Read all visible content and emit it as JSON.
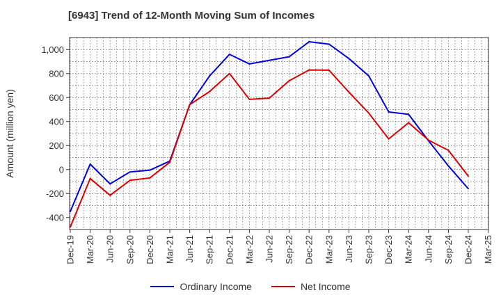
{
  "chart_data": {
    "type": "line",
    "title": "[6943]  Trend of 12-Month Moving Sum of Incomes",
    "xlabel": "",
    "ylabel": "Amount (million yen)",
    "ylim": [
      -500,
      1100
    ],
    "yticks": [
      -400,
      -200,
      0,
      200,
      400,
      600,
      800,
      1000
    ],
    "ytick_labels": [
      "-400",
      "-200",
      "0",
      "200",
      "400",
      "600",
      "800",
      "1,000"
    ],
    "grid": true,
    "legend_position": "bottom-center",
    "categories": [
      "Dec-19",
      "Mar-20",
      "Jun-20",
      "Sep-20",
      "Dec-20",
      "Mar-21",
      "Jun-21",
      "Sep-21",
      "Dec-21",
      "Mar-22",
      "Jun-22",
      "Sep-22",
      "Dec-22",
      "Mar-23",
      "Jun-23",
      "Sep-23",
      "Dec-23",
      "Mar-24",
      "Jun-24",
      "Sep-24",
      "Dec-24",
      "Mar-25"
    ],
    "series": [
      {
        "name": "Ordinary Income",
        "color": "#0000dd",
        "values": [
          -350,
          45,
          -120,
          -20,
          -5,
          70,
          540,
          780,
          960,
          880,
          910,
          940,
          1065,
          1045,
          925,
          780,
          480,
          460,
          240,
          30,
          -160,
          null
        ]
      },
      {
        "name": "Net Income",
        "color": "#dd0000",
        "values": [
          -480,
          -75,
          -215,
          -90,
          -70,
          60,
          540,
          650,
          800,
          585,
          595,
          740,
          830,
          828,
          645,
          470,
          255,
          390,
          245,
          160,
          -55,
          null
        ]
      }
    ]
  }
}
